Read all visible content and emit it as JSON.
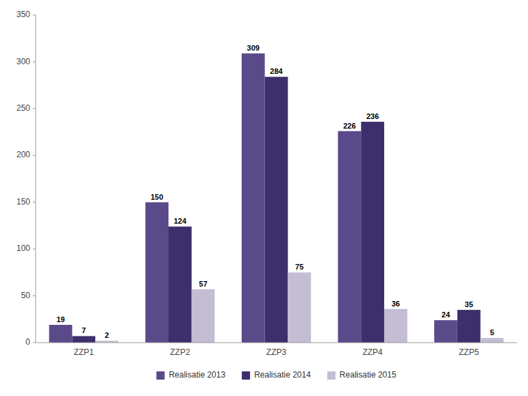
{
  "chart_data": {
    "type": "bar",
    "categories": [
      "ZZP1",
      "ZZP2",
      "ZZP3",
      "ZZP4",
      "ZZP5"
    ],
    "series": [
      {
        "name": "Realisatie 2013",
        "color": "#5B4A8A",
        "values": [
          19,
          150,
          309,
          226,
          24
        ]
      },
      {
        "name": "Realisatie 2014",
        "color": "#3D2F6B",
        "values": [
          7,
          124,
          284,
          236,
          35
        ]
      },
      {
        "name": "Realisatie 2015",
        "color": "#C4BDD4",
        "values": [
          2,
          57,
          75,
          36,
          5
        ]
      }
    ],
    "ylim": [
      0,
      350
    ],
    "yticks": [
      0,
      50,
      100,
      150,
      200,
      250,
      300,
      350
    ],
    "grid": false,
    "legend": "bottom",
    "data_labels": true
  }
}
